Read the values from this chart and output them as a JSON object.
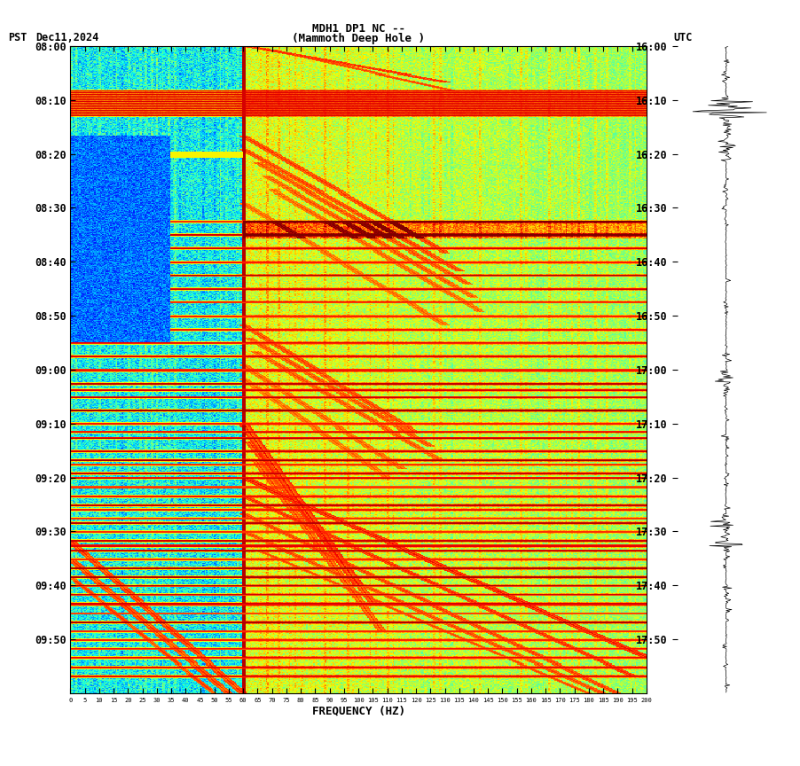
{
  "title_line1": "MDH1 DP1 NC --",
  "title_line2": "(Mammoth Deep Hole )",
  "label_left": "PST   Dec11,2024",
  "label_right": "UTC",
  "xlabel": "FREQUENCY (HZ)",
  "freq_ticks": [
    0,
    5,
    10,
    15,
    20,
    25,
    30,
    35,
    40,
    45,
    50,
    55,
    60,
    65,
    70,
    75,
    80,
    85,
    90,
    95,
    100,
    105,
    110,
    115,
    120,
    125,
    130,
    135,
    140,
    145,
    150,
    155,
    160,
    165,
    170,
    175,
    180,
    185,
    190,
    195,
    200
  ],
  "freq_max": 200,
  "ytick_pst": [
    "08:00",
    "08:10",
    "08:20",
    "08:30",
    "08:40",
    "08:50",
    "09:00",
    "09:10",
    "09:20",
    "09:30",
    "09:40",
    "09:50"
  ],
  "ytick_utc": [
    "16:00",
    "16:10",
    "16:20",
    "16:30",
    "16:40",
    "16:50",
    "17:00",
    "17:10",
    "17:20",
    "17:30",
    "17:40",
    "17:50"
  ],
  "colormap": "jet",
  "bg_color": "#ffffff",
  "fig_width": 9.02,
  "fig_height": 8.64,
  "dpi": 100,
  "seed": 42
}
